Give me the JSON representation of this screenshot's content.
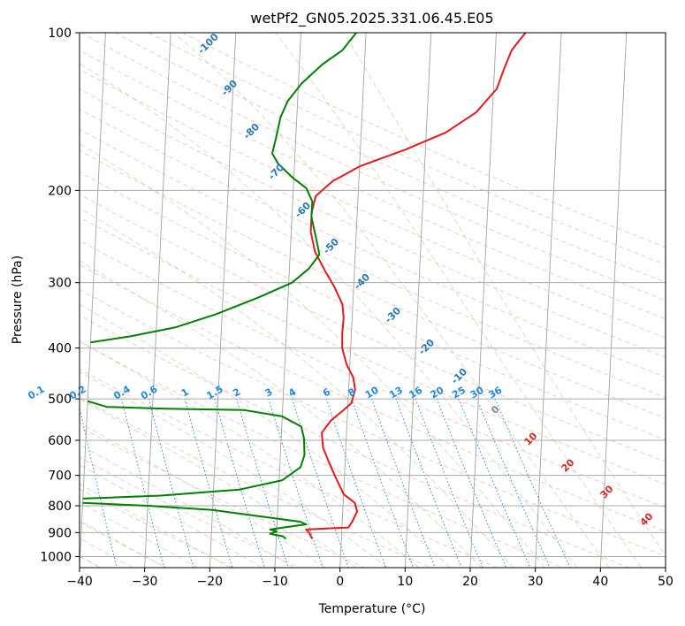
{
  "chart_data": {
    "type": "line",
    "title": "wetPf2_GN05.2025.331.06.45.E05",
    "xlabel": "Temperature (°C)",
    "ylabel": "Pressure (hPa)",
    "xlim": [
      -40,
      50
    ],
    "ylim": [
      1050,
      100
    ],
    "y_scale": "log",
    "x_ticks": [
      -40,
      -30,
      -20,
      -10,
      0,
      10,
      20,
      30,
      40,
      50
    ],
    "y_ticks": [
      100,
      200,
      300,
      400,
      500,
      600,
      700,
      800,
      900,
      1000
    ],
    "grid": true,
    "series": [
      {
        "color": "#e41a1c",
        "points": [
          [
            -4.5,
            925
          ],
          [
            -5.0,
            900
          ],
          [
            -5.5,
            888
          ],
          [
            1.0,
            880
          ],
          [
            1.5,
            860
          ],
          [
            2.2,
            820
          ],
          [
            1.8,
            790
          ],
          [
            0.0,
            760
          ],
          [
            -1.5,
            700
          ],
          [
            -2.5,
            660
          ],
          [
            -3.5,
            620
          ],
          [
            -3.8,
            580
          ],
          [
            -2.5,
            550
          ],
          [
            -1.0,
            530
          ],
          [
            0.5,
            510
          ],
          [
            1.0,
            480
          ],
          [
            0.6,
            455
          ],
          [
            -0.5,
            430
          ],
          [
            -1.3,
            400
          ],
          [
            -1.4,
            375
          ],
          [
            -1.3,
            350
          ],
          [
            -1.6,
            330
          ],
          [
            -3.0,
            305
          ],
          [
            -4.5,
            285
          ],
          [
            -6.2,
            262
          ],
          [
            -7.0,
            240
          ],
          [
            -7.0,
            220
          ],
          [
            -6.5,
            205
          ],
          [
            -4.0,
            192
          ],
          [
            0.0,
            180
          ],
          [
            7.0,
            167
          ],
          [
            13.0,
            155
          ],
          [
            17.5,
            142
          ],
          [
            20.5,
            128
          ],
          [
            21.5,
            117
          ],
          [
            22.5,
            108
          ],
          [
            24.5,
            100
          ]
        ]
      },
      {
        "color": "#008000",
        "points": [
          [
            -40.0,
            390
          ],
          [
            -34.0,
            380
          ],
          [
            -27.0,
            365
          ],
          [
            -21.0,
            345
          ],
          [
            -14.5,
            320
          ],
          [
            -9.5,
            300
          ],
          [
            -7.0,
            282
          ],
          [
            -5.5,
            265
          ],
          [
            -6.2,
            245
          ],
          [
            -7.0,
            225
          ],
          [
            -7.0,
            210
          ],
          [
            -8.0,
            198
          ],
          [
            -10.0,
            190
          ],
          [
            -12.5,
            178
          ],
          [
            -13.5,
            170
          ],
          [
            -13.0,
            158
          ],
          [
            -12.5,
            145
          ],
          [
            -11.5,
            135
          ],
          [
            -9.5,
            125
          ],
          [
            -6.5,
            115
          ],
          [
            -3.5,
            108
          ],
          [
            -1.5,
            100
          ]
        ]
      },
      {
        "color": "#008000",
        "points": [
          [
            -40.0,
            505
          ],
          [
            -37.0,
            518
          ],
          [
            -28.0,
            522
          ],
          [
            -16.0,
            525
          ],
          [
            -10.0,
            540
          ],
          [
            -7.0,
            565
          ],
          [
            -6.5,
            595
          ],
          [
            -6.3,
            640
          ],
          [
            -6.8,
            675
          ],
          [
            -9.5,
            715
          ],
          [
            -16.0,
            745
          ],
          [
            -28.0,
            765
          ],
          [
            -40.0,
            775
          ]
        ]
      },
      {
        "color": "#008000",
        "points": [
          [
            -40.0,
            790
          ],
          [
            -30.0,
            800
          ],
          [
            -20.0,
            815
          ],
          [
            -12.0,
            840
          ],
          [
            -6.5,
            858
          ],
          [
            -5.5,
            868
          ],
          [
            -9.0,
            880
          ],
          [
            -11.0,
            888
          ],
          [
            -10.0,
            895
          ],
          [
            -11.0,
            905
          ],
          [
            -9.0,
            915
          ],
          [
            -8.5,
            925
          ]
        ]
      }
    ],
    "dry_adiabat_labels": [
      "-100",
      "-90",
      "-80",
      "-70",
      "-60",
      "-50",
      "-40",
      "-30",
      "-20",
      "-10"
    ],
    "mixing_ratio_labels": [
      "0.1",
      "0.2",
      "0.4",
      "0.6",
      "1",
      "1.5",
      "2",
      "3",
      "4",
      "6",
      "8",
      "10",
      "13",
      "16",
      "20",
      "25",
      "30",
      "36"
    ],
    "moist_adiabat_labels": [
      "0",
      "10",
      "20",
      "30",
      "40"
    ]
  }
}
